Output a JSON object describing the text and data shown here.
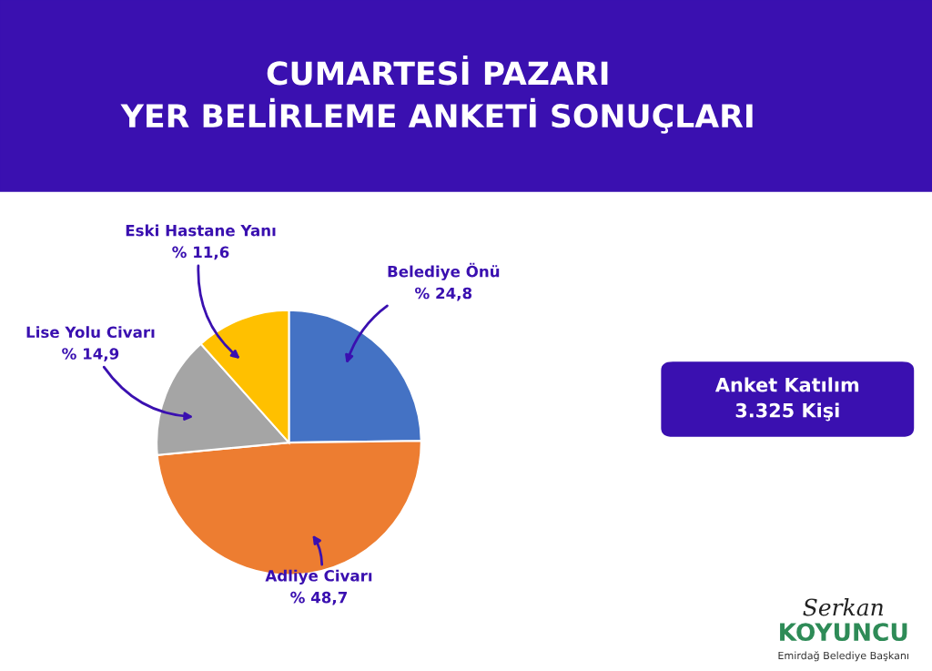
{
  "chart_data": {
    "type": "pie",
    "title": "CUMARTESİ PAZARI\nYER BELİRLEME ANKETİ SONUÇLARI",
    "categories": [
      "Belediye Önü",
      "Adliye Civarı",
      "Lise Yolu Civarı",
      "Eski Hastane Yanı"
    ],
    "values": [
      24.8,
      48.7,
      14.9,
      11.6
    ],
    "value_labels": [
      "% 24,8",
      "% 48,7",
      "% 14,9",
      "% 11,6"
    ],
    "colors": [
      "#4472c4",
      "#ed7d31",
      "#a5a5a5",
      "#ffc000"
    ],
    "annotations": [
      "Anket Katılım\n3.325 Kişi",
      "Serkan",
      "KOYUNCU",
      "Emirdağ Belediye Başkanı"
    ],
    "legend": false
  }
}
